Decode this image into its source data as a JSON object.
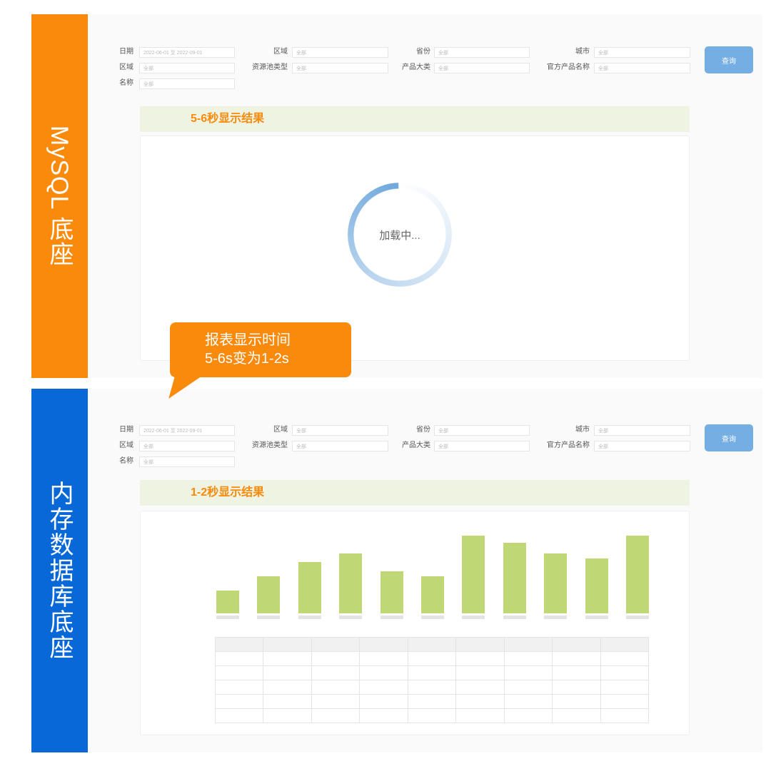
{
  "sections": [
    {
      "band_label": "MySQL 底座",
      "color": "#f98a0b",
      "result_title": "5-6秒显示结果",
      "loading_text": "加载中..."
    },
    {
      "band_label": "内存数据库底座",
      "color": "#0868d8",
      "result_title": "1-2秒显示结果"
    }
  ],
  "filters": {
    "fields": [
      {
        "label": "日期",
        "value": "2022-06-01 至 2022-09-01"
      },
      {
        "label": "区域",
        "value": "全部"
      },
      {
        "label": "省份",
        "value": "全部"
      },
      {
        "label": "城市",
        "value": "全部"
      },
      {
        "label": "区域",
        "value": "全部"
      },
      {
        "label": "资源池类型",
        "value": "全部"
      },
      {
        "label": "产品大类",
        "value": "全部"
      },
      {
        "label": "官方产品名称",
        "value": "全部"
      },
      {
        "label": "名称",
        "value": "全部"
      }
    ],
    "query_button": "查询"
  },
  "callout": {
    "line1": "报表显示时间",
    "line2": "5-6s变为1-2s",
    "color": "#f98a0b"
  },
  "chart_data": {
    "type": "bar",
    "values": [
      32,
      52,
      72,
      84,
      59,
      52,
      109,
      99,
      84,
      77,
      109
    ],
    "bar_color": "#bfd774",
    "grid": false
  },
  "table": {
    "columns": 9,
    "rows": 5
  }
}
